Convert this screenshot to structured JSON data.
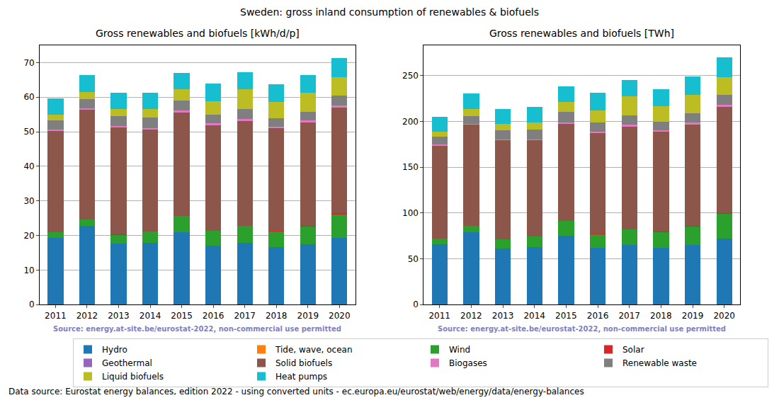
{
  "title": "Sweden: gross inland consumption of renewables & biofuels",
  "footnote": "Data source: Eurostat energy balances, edition 2022 - using converted units - ec.europa.eu/eurostat/web/energy/data/energy-balances",
  "legend": "bottom",
  "chart_data": [
    {
      "type": "bar",
      "stacked": true,
      "grid": true,
      "title": "Gross renewables and biofuels [kWh/d/p]",
      "annotations": [
        "Source: energy.at-site.be/eurostat-2022, non-commercial use permitted"
      ],
      "categories": [
        "2011",
        "2012",
        "2013",
        "2014",
        "2015",
        "2016",
        "2017",
        "2018",
        "2019",
        "2020"
      ],
      "ylim": [
        0,
        75
      ],
      "yticks": [
        0,
        10,
        20,
        30,
        40,
        50,
        60,
        70
      ],
      "series": [
        {
          "name": "Hydro",
          "color": "#1f77b4",
          "values": [
            19.3,
            22.7,
            17.6,
            17.9,
            21.0,
            17.0,
            17.8,
            16.7,
            17.5,
            19.3
          ]
        },
        {
          "name": "Tide, wave, ocean",
          "color": "#ff7f0e",
          "values": [
            0,
            0,
            0,
            0,
            0,
            0,
            0,
            0,
            0,
            0
          ]
        },
        {
          "name": "Wind",
          "color": "#2ca02c",
          "values": [
            1.6,
            1.9,
            2.6,
            3.2,
            4.6,
            4.4,
            4.9,
            4.5,
            5.1,
            6.8
          ]
        },
        {
          "name": "Solar",
          "color": "#d62728",
          "values": [
            0.02,
            0.03,
            0.03,
            0.03,
            0.03,
            0.03,
            0.05,
            0.1,
            0.2,
            0.3
          ]
        },
        {
          "name": "Geothermal",
          "color": "#9467bd",
          "values": [
            0,
            0,
            0,
            0,
            0,
            0,
            0,
            0,
            0,
            0
          ]
        },
        {
          "name": "Solid biofuels",
          "color": "#8c564b",
          "values": [
            29.4,
            31.8,
            31.0,
            29.6,
            30.0,
            30.5,
            30.4,
            29.7,
            29.9,
            30.6
          ]
        },
        {
          "name": "Biogases",
          "color": "#e377c2",
          "values": [
            0.4,
            0.4,
            0.4,
            0.4,
            0.5,
            0.5,
            0.5,
            0.5,
            0.5,
            0.6
          ]
        },
        {
          "name": "Renewable waste",
          "color": "#7f7f7f",
          "values": [
            2.5,
            2.6,
            2.9,
            2.9,
            2.9,
            2.6,
            2.9,
            2.4,
            2.5,
            2.9
          ]
        },
        {
          "name": "Liquid biofuels",
          "color": "#bcbd22",
          "values": [
            1.8,
            2.1,
            2.0,
            2.5,
            3.2,
            3.7,
            5.7,
            4.7,
            5.5,
            5.3
          ]
        },
        {
          "name": "Heat pumps",
          "color": "#17becf",
          "values": [
            4.6,
            4.9,
            4.7,
            4.7,
            4.7,
            5.2,
            4.9,
            5.2,
            5.2,
            5.6
          ]
        }
      ]
    },
    {
      "type": "bar",
      "stacked": true,
      "grid": true,
      "title": "Gross renewables and biofuels [TWh]",
      "annotations": [
        "Source: energy.at-site.be/eurostat-2022, non-commercial use permitted"
      ],
      "categories": [
        "2011",
        "2012",
        "2013",
        "2014",
        "2015",
        "2016",
        "2017",
        "2018",
        "2019",
        "2020"
      ],
      "ylim": [
        0,
        283
      ],
      "yticks": [
        0,
        50,
        100,
        150,
        200,
        250
      ],
      "series": [
        {
          "name": "Hydro",
          "color": "#1f77b4",
          "values": [
            66,
            79,
            61,
            63,
            75,
            62,
            65,
            62,
            65,
            72
          ]
        },
        {
          "name": "Tide, wave, ocean",
          "color": "#ff7f0e",
          "values": [
            0,
            0,
            0,
            0,
            0,
            0,
            0,
            0,
            0,
            0
          ]
        },
        {
          "name": "Wind",
          "color": "#2ca02c",
          "values": [
            6,
            7,
            10,
            11,
            16,
            15,
            17,
            17,
            20,
            27
          ]
        },
        {
          "name": "Solar",
          "color": "#d62728",
          "values": [
            0.1,
            0.1,
            0.1,
            0.1,
            0.1,
            0.1,
            0.2,
            0.4,
            0.7,
            1.1
          ]
        },
        {
          "name": "Geothermal",
          "color": "#9467bd",
          "values": [
            0,
            0,
            0,
            0,
            0,
            0,
            0,
            0,
            0,
            0
          ]
        },
        {
          "name": "Solid biofuels",
          "color": "#8c564b",
          "values": [
            101,
            110,
            108,
            105,
            106,
            110,
            112,
            109,
            111,
            115.5
          ]
        },
        {
          "name": "Biogases",
          "color": "#e377c2",
          "values": [
            1.5,
            1.5,
            1.5,
            1.5,
            1.7,
            2,
            2,
            2,
            2,
            2.5
          ]
        },
        {
          "name": "Renewable waste",
          "color": "#7f7f7f",
          "values": [
            8.5,
            8.5,
            9.5,
            10.5,
            11.3,
            10,
            10,
            9,
            10,
            10.5
          ]
        },
        {
          "name": "Liquid biofuels",
          "color": "#bcbd22",
          "values": [
            6,
            7,
            7,
            8,
            11,
            13,
            21,
            17,
            20,
            20
          ]
        },
        {
          "name": "Heat pumps",
          "color": "#17becf",
          "values": [
            16,
            17,
            16,
            17,
            17,
            19,
            18,
            19,
            20,
            21
          ]
        }
      ]
    }
  ]
}
